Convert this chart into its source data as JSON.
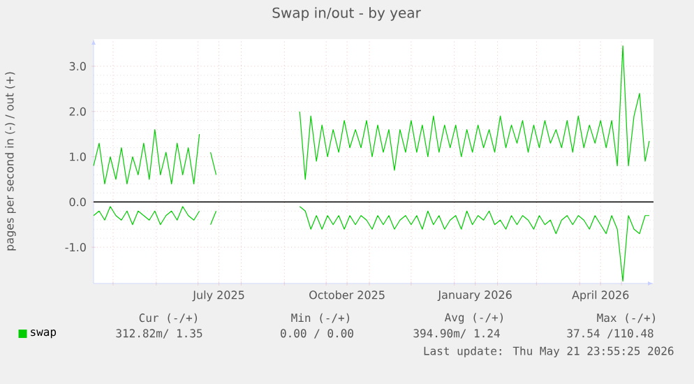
{
  "chart_data": {
    "type": "line",
    "title": "Swap in/out - by year",
    "ylabel": "pages per second in (-) / out (+)",
    "x": [
      "2025-04-17",
      "2025-04-21",
      "2025-04-25",
      "2025-04-29",
      "2025-05-03",
      "2025-05-07",
      "2025-05-11",
      "2025-05-15",
      "2025-05-19",
      "2025-05-23",
      "2025-05-27",
      "2025-05-31",
      "2025-06-04",
      "2025-06-08",
      "2025-06-12",
      "2025-06-16",
      "2025-06-20",
      "2025-06-24",
      "2025-06-28",
      "2025-07-02",
      "2025-07-06",
      "2025-07-10",
      "2025-07-14",
      "2025-07-18",
      "2025-07-22",
      "2025-07-26",
      "2025-07-30",
      "2025-08-03",
      "2025-08-07",
      "2025-08-11",
      "2025-08-15",
      "2025-08-19",
      "2025-08-23",
      "2025-08-27",
      "2025-08-31",
      "2025-09-04",
      "2025-09-08",
      "2025-09-12",
      "2025-09-16",
      "2025-09-20",
      "2025-09-24",
      "2025-09-28",
      "2025-10-02",
      "2025-10-06",
      "2025-10-10",
      "2025-10-14",
      "2025-10-18",
      "2025-10-22",
      "2025-10-26",
      "2025-10-30",
      "2025-11-03",
      "2025-11-07",
      "2025-11-11",
      "2025-11-15",
      "2025-11-19",
      "2025-11-23",
      "2025-11-27",
      "2025-12-01",
      "2025-12-05",
      "2025-12-09",
      "2025-12-13",
      "2025-12-17",
      "2025-12-21",
      "2025-12-25",
      "2025-12-29",
      "2026-01-02",
      "2026-01-06",
      "2026-01-10",
      "2026-01-14",
      "2026-01-18",
      "2026-01-22",
      "2026-01-26",
      "2026-01-30",
      "2026-02-03",
      "2026-02-07",
      "2026-02-11",
      "2026-02-15",
      "2026-02-19",
      "2026-02-23",
      "2026-02-27",
      "2026-03-03",
      "2026-03-07",
      "2026-03-11",
      "2026-03-15",
      "2026-03-19",
      "2026-03-23",
      "2026-03-27",
      "2026-03-31",
      "2026-04-04",
      "2026-04-08",
      "2026-04-12",
      "2026-04-16",
      "2026-04-20",
      "2026-04-24",
      "2026-04-28",
      "2026-05-02",
      "2026-05-06",
      "2026-05-10",
      "2026-05-14",
      "2026-05-18",
      "2026-05-21"
    ],
    "series": [
      {
        "name": "swap",
        "color": "#00cc00",
        "values": [
          0.8,
          1.3,
          0.4,
          1.0,
          0.5,
          1.2,
          0.4,
          1.0,
          0.6,
          1.3,
          0.5,
          1.6,
          0.6,
          1.1,
          0.4,
          1.3,
          0.6,
          1.2,
          0.4,
          1.5,
          null,
          1.1,
          0.6,
          null,
          null,
          null,
          null,
          null,
          null,
          null,
          null,
          null,
          null,
          null,
          null,
          null,
          null,
          2.0,
          0.5,
          1.9,
          0.9,
          1.7,
          1.0,
          1.6,
          1.1,
          1.8,
          1.2,
          1.6,
          1.2,
          1.8,
          1.0,
          1.7,
          1.1,
          1.6,
          0.7,
          1.6,
          1.1,
          1.8,
          1.1,
          1.7,
          1.0,
          1.9,
          1.1,
          1.7,
          1.2,
          1.7,
          1.0,
          1.6,
          1.1,
          1.7,
          1.2,
          1.6,
          1.1,
          1.9,
          1.2,
          1.7,
          1.3,
          1.8,
          1.1,
          1.7,
          1.2,
          1.8,
          1.3,
          1.6,
          1.2,
          1.8,
          1.1,
          1.9,
          1.2,
          1.7,
          1.3,
          1.8,
          1.2,
          1.8,
          0.8,
          3.45,
          0.8,
          1.9,
          2.4,
          0.9,
          1.35
        ]
      },
      {
        "color": "#00cc00",
        "values": [
          -0.3,
          -0.2,
          -0.4,
          -0.1,
          -0.3,
          -0.4,
          -0.2,
          -0.5,
          -0.2,
          -0.3,
          -0.4,
          -0.2,
          -0.5,
          -0.3,
          -0.2,
          -0.4,
          -0.1,
          -0.3,
          -0.4,
          -0.2,
          null,
          -0.5,
          -0.2,
          null,
          null,
          null,
          null,
          null,
          null,
          null,
          null,
          null,
          null,
          null,
          null,
          null,
          null,
          -0.1,
          -0.2,
          -0.6,
          -0.3,
          -0.6,
          -0.3,
          -0.5,
          -0.3,
          -0.6,
          -0.3,
          -0.5,
          -0.3,
          -0.4,
          -0.6,
          -0.3,
          -0.5,
          -0.3,
          -0.6,
          -0.4,
          -0.3,
          -0.5,
          -0.3,
          -0.6,
          -0.2,
          -0.5,
          -0.3,
          -0.6,
          -0.4,
          -0.3,
          -0.6,
          -0.2,
          -0.5,
          -0.3,
          -0.4,
          -0.2,
          -0.5,
          -0.4,
          -0.6,
          -0.3,
          -0.5,
          -0.3,
          -0.4,
          -0.6,
          -0.3,
          -0.5,
          -0.4,
          -0.7,
          -0.4,
          -0.3,
          -0.5,
          -0.3,
          -0.4,
          -0.6,
          -0.3,
          -0.5,
          -0.7,
          -0.3,
          -0.6,
          -1.75,
          -0.3,
          -0.6,
          -0.7,
          -0.3,
          -0.3
        ]
      }
    ],
    "xlim": [
      "2025-04-17",
      "2026-05-24"
    ],
    "xticks": [
      {
        "value": "2025-05-01",
        "label": null
      },
      {
        "value": "2025-06-01",
        "label": null
      },
      {
        "value": "2025-07-01",
        "label": null
      },
      {
        "value": "2025-07-16",
        "label": "July 2025"
      },
      {
        "value": "2025-08-01",
        "label": null
      },
      {
        "value": "2025-09-01",
        "label": null
      },
      {
        "value": "2025-10-01",
        "label": null
      },
      {
        "value": "2025-10-16",
        "label": "October 2025"
      },
      {
        "value": "2025-11-01",
        "label": null
      },
      {
        "value": "2025-12-01",
        "label": null
      },
      {
        "value": "2026-01-01",
        "label": null
      },
      {
        "value": "2026-01-16",
        "label": "January 2026"
      },
      {
        "value": "2026-02-01",
        "label": null
      },
      {
        "value": "2026-03-01",
        "label": null
      },
      {
        "value": "2026-04-01",
        "label": null
      },
      {
        "value": "2026-04-16",
        "label": "April 2026"
      },
      {
        "value": "2026-05-01",
        "label": null
      }
    ],
    "ylim": [
      -1.8,
      3.6
    ],
    "yticks": [
      {
        "value": -1,
        "label": "-1.0"
      },
      {
        "value": 0,
        "label": "0.0"
      },
      {
        "value": 1,
        "label": "1.0"
      },
      {
        "value": 2,
        "label": "2.0"
      },
      {
        "value": 3,
        "label": "3.0"
      }
    ],
    "ref_lines": [
      {
        "axis": "y",
        "value": 0,
        "color": "#000000"
      }
    ],
    "grid": true,
    "legend": "bottom left",
    "annotations": [
      "Cur (-/+)",
      "Min (-/+)",
      "Avg (-/+)",
      "Max (-/+)",
      "312.82m/ 1.35",
      "0.00 / 0.00",
      "394.90m/ 1.24",
      "37.54 /110.48",
      "Last update: Thu May 21 23:55:25 2026"
    ]
  }
}
